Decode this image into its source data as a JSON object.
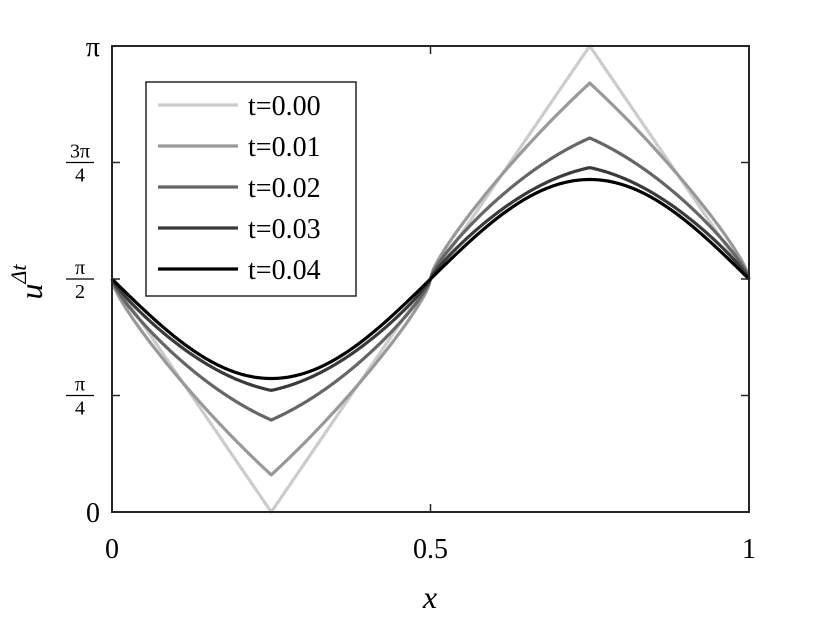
{
  "chart_data": {
    "type": "line",
    "title": "",
    "xlabel": "x",
    "ylabel": {
      "base": "u",
      "superscript": "Δt"
    },
    "xlim": [
      0,
      1
    ],
    "ylim": [
      0,
      3.14159265
    ],
    "xticks": [
      {
        "value": 0,
        "label": "0"
      },
      {
        "value": 0.5,
        "label": "0.5"
      },
      {
        "value": 1,
        "label": "1"
      }
    ],
    "yticks": [
      {
        "value": 0,
        "label": "0",
        "kind": "plain"
      },
      {
        "value": 0.78539816,
        "num": "π",
        "den": "4",
        "kind": "frac"
      },
      {
        "value": 1.57079633,
        "num": "π",
        "den": "2",
        "kind": "frac"
      },
      {
        "value": 2.35619449,
        "num": "3π",
        "den": "4",
        "kind": "frac"
      },
      {
        "value": 3.14159265,
        "label": "π",
        "kind": "plain"
      }
    ],
    "grid": false,
    "legend_position": "top-left",
    "series": [
      {
        "name": "t=0.00",
        "color": "#cccccc",
        "decay": 1.0,
        "x": [
          0,
          0.25,
          0.5,
          0.75,
          1
        ],
        "y": [
          1.5708,
          0.0,
          1.5708,
          3.1416,
          1.5708
        ]
      },
      {
        "name": "t=0.01",
        "color": "#999999",
        "decay": 0.75,
        "x": [
          0,
          0.125,
          0.25,
          0.375,
          0.5,
          0.625,
          0.75,
          0.875,
          1
        ],
        "y": [
          1.5708,
          0.72,
          0.25,
          0.83,
          1.5708,
          2.31,
          2.89,
          2.42,
          1.5708
        ]
      },
      {
        "name": "t=0.02",
        "color": "#666666",
        "decay": 0.5,
        "x": [
          0,
          0.125,
          0.25,
          0.375,
          0.5,
          0.625,
          0.75,
          0.875,
          1
        ],
        "y": [
          1.5708,
          0.89,
          0.62,
          0.96,
          1.5708,
          2.18,
          2.52,
          2.25,
          1.5708
        ]
      },
      {
        "name": "t=0.03",
        "color": "#3a3a3a",
        "decay": 0.3,
        "x": [
          0,
          0.125,
          0.25,
          0.375,
          0.5,
          0.625,
          0.75,
          0.875,
          1
        ],
        "y": [
          1.5708,
          1.01,
          0.82,
          1.06,
          1.5708,
          2.08,
          2.32,
          2.13,
          1.5708
        ]
      },
      {
        "name": "t=0.04",
        "color": "#000000",
        "decay": 0.0,
        "x": [
          0,
          0.125,
          0.25,
          0.375,
          0.5,
          0.625,
          0.75,
          0.875,
          1
        ],
        "y": [
          1.5708,
          1.09,
          0.9,
          1.1,
          1.5708,
          2.05,
          2.24,
          2.05,
          1.5708
        ]
      }
    ]
  }
}
